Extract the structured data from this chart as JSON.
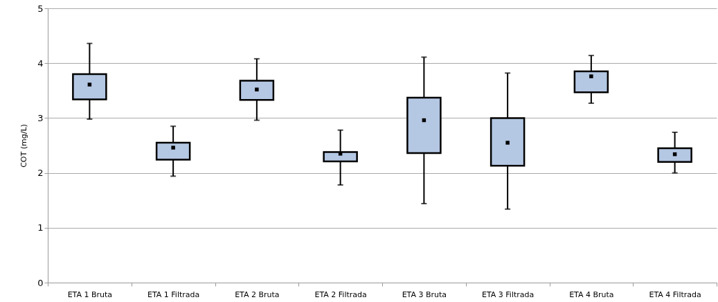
{
  "chart_data": {
    "type": "box",
    "ylabel": "COT (mg/L)",
    "categories": [
      "ETA 1 Bruta",
      "ETA 1 Filtrada",
      "ETA 2 Bruta",
      "ETA 2 Filtrada",
      "ETA 3 Bruta",
      "ETA 3 Filtrada",
      "ETA 4 Bruta",
      "ETA 4 Filtrada"
    ],
    "series": [
      {
        "color": "#b4c7e3",
        "boxes": [
          {
            "low": 2.98,
            "q1": 3.34,
            "median": 3.61,
            "q3": 3.8,
            "high": 4.36
          },
          {
            "low": 1.94,
            "q1": 2.24,
            "median": 2.46,
            "q3": 2.55,
            "high": 2.85
          },
          {
            "low": 2.96,
            "q1": 3.33,
            "median": 3.52,
            "q3": 3.68,
            "high": 4.08
          },
          {
            "low": 1.78,
            "q1": 2.21,
            "median": 2.35,
            "q3": 2.38,
            "high": 2.78
          },
          {
            "low": 1.44,
            "q1": 2.36,
            "median": 2.96,
            "q3": 3.37,
            "high": 4.11
          },
          {
            "low": 1.34,
            "q1": 2.13,
            "median": 2.55,
            "q3": 3.0,
            "high": 3.82
          },
          {
            "low": 3.27,
            "q1": 3.47,
            "median": 3.76,
            "q3": 3.85,
            "high": 4.14
          },
          {
            "low": 2.0,
            "q1": 2.2,
            "median": 2.34,
            "q3": 2.45,
            "high": 2.74
          }
        ]
      }
    ],
    "ylim": [
      0,
      5
    ],
    "yticks": [
      0,
      1,
      2,
      3,
      4,
      5
    ],
    "grid": "y"
  }
}
